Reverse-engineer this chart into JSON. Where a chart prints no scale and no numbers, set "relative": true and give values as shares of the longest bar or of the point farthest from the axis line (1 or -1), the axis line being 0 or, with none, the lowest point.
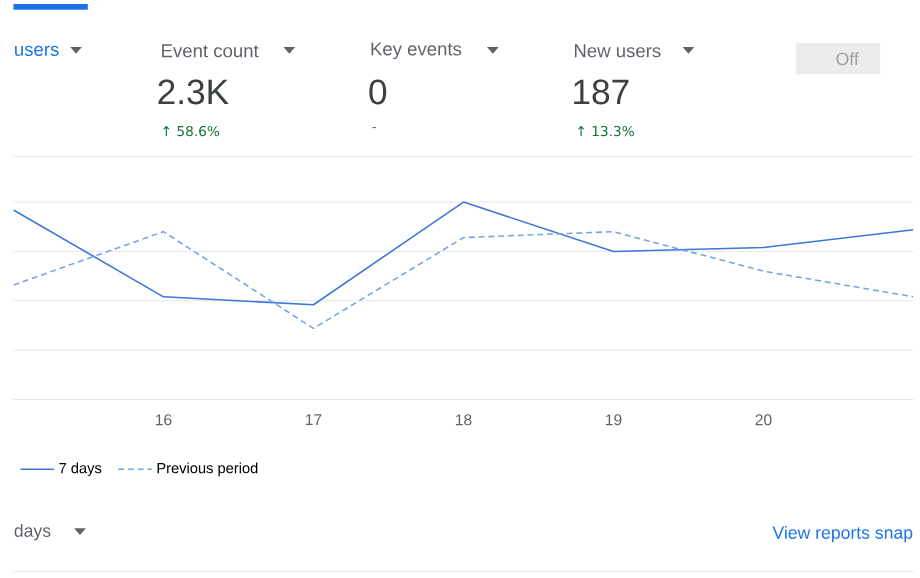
{
  "chart_data": {
    "type": "line",
    "relative": true,
    "categories": [
      null,
      "16",
      "17",
      "18",
      "19",
      "20",
      null
    ],
    "series": [
      {
        "name": "7 days",
        "color": "#3b78d8",
        "line_style": "solid",
        "values": [
          0.96,
          0.52,
          0.48,
          1,
          0.75,
          0.77,
          0.86
        ]
      },
      {
        "name": "Previous period",
        "color": "#74a3e6",
        "line_style": "dashed",
        "values": [
          0.58,
          0.85,
          0.36,
          0.82,
          0.85,
          0.65,
          0.52
        ]
      }
    ],
    "legend": "bottom left",
    "grid": "y",
    "marker": "none",
    "annotations": [
      "users",
      "Event count",
      "2.3K",
      "↑ 58.6%",
      "Key events",
      "0",
      "-",
      "New users",
      "187",
      "↑ 13.3%",
      "Off",
      "days",
      "View reports snap"
    ]
  }
}
